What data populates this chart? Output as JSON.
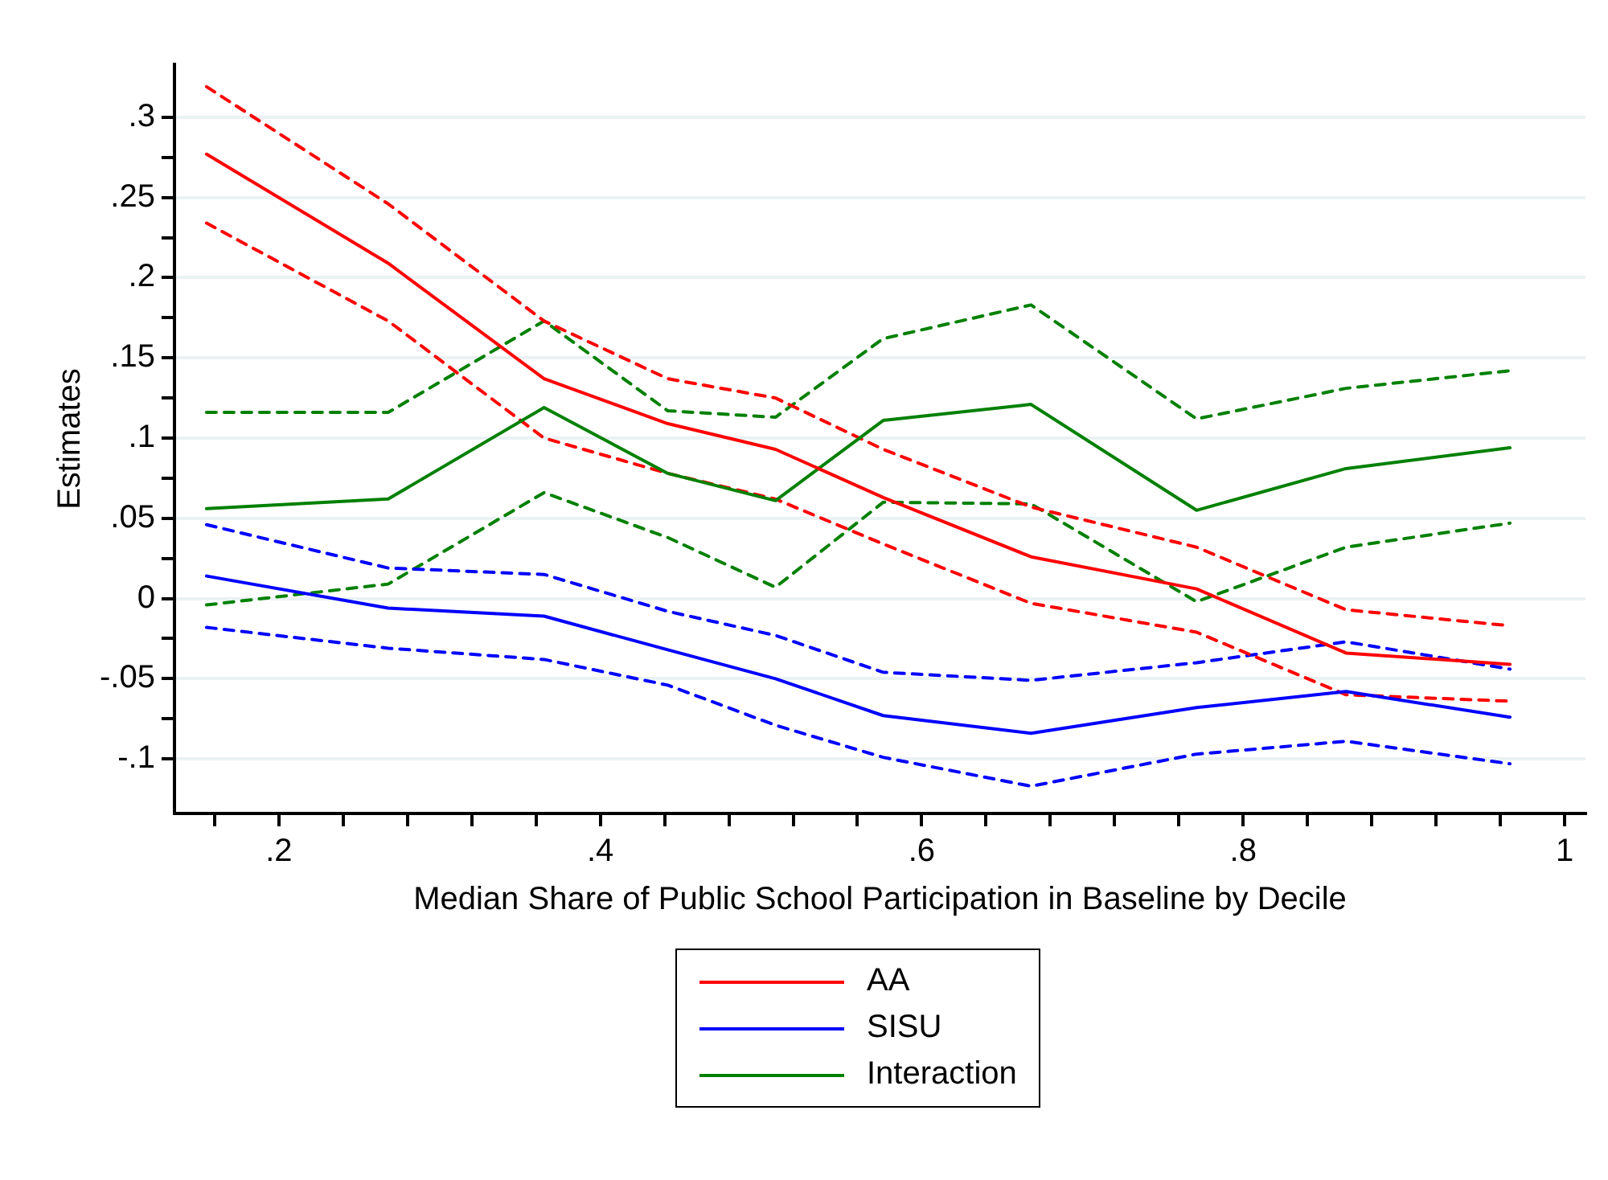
{
  "chart_data": {
    "type": "line",
    "xlabel": "Median Share of Public School Participation in Baseline by Decile",
    "ylabel": "Estimates",
    "x": [
      0.155,
      0.268,
      0.365,
      0.442,
      0.509,
      0.576,
      0.668,
      0.771,
      0.864,
      0.966
    ],
    "series": [
      {
        "name": "AA",
        "color": "#ff0000",
        "values": [
          0.277,
          0.209,
          0.137,
          0.109,
          0.093,
          0.063,
          0.026,
          0.006,
          -0.034,
          -0.041
        ]
      },
      {
        "name": "SISU",
        "color": "#0000ff",
        "values": [
          0.014,
          -0.006,
          -0.011,
          -0.032,
          -0.05,
          -0.073,
          -0.084,
          -0.068,
          -0.058,
          -0.074
        ]
      },
      {
        "name": "Interaction",
        "color": "#008000",
        "values": [
          0.056,
          0.062,
          0.119,
          0.078,
          0.061,
          0.111,
          0.121,
          0.055,
          0.081,
          0.094
        ]
      },
      {
        "color": "#ff0000",
        "line_style": "dashed",
        "values": [
          0.319,
          0.246,
          0.173,
          0.137,
          0.125,
          0.093,
          0.057,
          0.032,
          -0.007,
          -0.017
        ]
      },
      {
        "color": "#ff0000",
        "line_style": "dashed",
        "values": [
          0.234,
          0.173,
          0.1,
          0.078,
          0.062,
          0.034,
          -0.003,
          -0.021,
          -0.06,
          -0.064
        ]
      },
      {
        "color": "#0000ff",
        "line_style": "dashed",
        "values": [
          0.046,
          0.019,
          0.015,
          -0.008,
          -0.023,
          -0.046,
          -0.051,
          -0.04,
          -0.027,
          -0.044
        ]
      },
      {
        "color": "#0000ff",
        "line_style": "dashed",
        "values": [
          -0.018,
          -0.031,
          -0.038,
          -0.054,
          -0.079,
          -0.099,
          -0.117,
          -0.097,
          -0.089,
          -0.103
        ]
      },
      {
        "color": "#008000",
        "line_style": "dashed",
        "values": [
          0.116,
          0.116,
          0.173,
          0.117,
          0.113,
          0.162,
          0.183,
          0.112,
          0.131,
          0.142
        ]
      },
      {
        "color": "#008000",
        "line_style": "dashed",
        "values": [
          -0.004,
          0.009,
          0.066,
          0.038,
          0.007,
          0.06,
          0.059,
          -0.002,
          0.032,
          0.047
        ]
      }
    ],
    "xlim": [
      0.135,
      1.013
    ],
    "xticks": [
      {
        "value": 0.16,
        "label": null
      },
      {
        "value": 0.2,
        "label": ".2"
      },
      {
        "value": 0.24,
        "label": null
      },
      {
        "value": 0.28,
        "label": null
      },
      {
        "value": 0.32,
        "label": null
      },
      {
        "value": 0.36,
        "label": null
      },
      {
        "value": 0.4,
        "label": ".4"
      },
      {
        "value": 0.44,
        "label": null
      },
      {
        "value": 0.48,
        "label": null
      },
      {
        "value": 0.52,
        "label": null
      },
      {
        "value": 0.56,
        "label": null
      },
      {
        "value": 0.6,
        "label": ".6"
      },
      {
        "value": 0.64,
        "label": null
      },
      {
        "value": 0.68,
        "label": null
      },
      {
        "value": 0.72,
        "label": null
      },
      {
        "value": 0.76,
        "label": null
      },
      {
        "value": 0.8,
        "label": ".8"
      },
      {
        "value": 0.84,
        "label": null
      },
      {
        "value": 0.88,
        "label": null
      },
      {
        "value": 0.92,
        "label": null
      },
      {
        "value": 0.96,
        "label": null
      },
      {
        "value": 1,
        "label": "1"
      }
    ],
    "ylim": [
      -0.134,
      0.333
    ],
    "yticks": [
      {
        "value": -0.1,
        "label": "-.1"
      },
      {
        "value": -0.075,
        "label": null
      },
      {
        "value": -0.05,
        "label": "-.05"
      },
      {
        "value": -0.025,
        "label": null
      },
      0,
      {
        "value": 0.025,
        "label": null
      },
      {
        "value": 0.05,
        "label": ".05"
      },
      {
        "value": 0.075,
        "label": null
      },
      {
        "value": 0.1,
        "label": ".1"
      },
      {
        "value": 0.125,
        "label": null
      },
      {
        "value": 0.15,
        "label": ".15"
      },
      {
        "value": 0.175,
        "label": null
      },
      {
        "value": 0.2,
        "label": ".2"
      },
      {
        "value": 0.225,
        "label": null
      },
      {
        "value": 0.25,
        "label": ".25"
      },
      {
        "value": 0.275,
        "label": null
      },
      {
        "value": 0.3,
        "label": ".3"
      }
    ],
    "grid": "y",
    "legend": "bottom",
    "marker": "none",
    "line_style": "solid"
  }
}
